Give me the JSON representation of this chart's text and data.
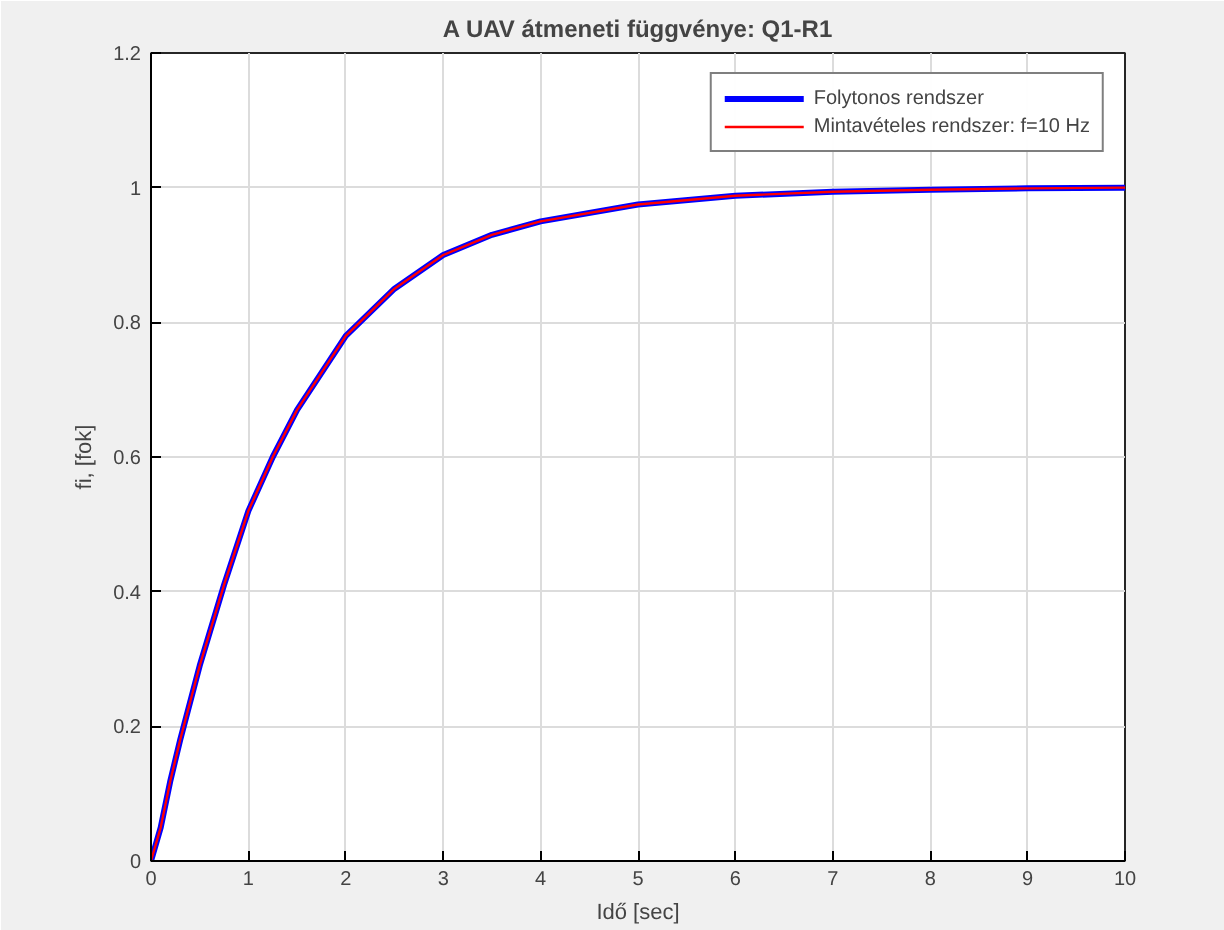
{
  "chart_data": {
    "type": "line",
    "title": "A UAV átmeneti függvénye: Q1-R1",
    "xlabel": "Idő [sec]",
    "ylabel": "fi, [fok]",
    "x": [
      0,
      0.1,
      0.2,
      0.3,
      0.5,
      0.75,
      1,
      1.25,
      1.5,
      2,
      2.5,
      3,
      3.5,
      4,
      5,
      6,
      7,
      8,
      9,
      10
    ],
    "series": [
      {
        "name": "Folytonos rendszer",
        "color": "#0000ff",
        "values": [
          0,
          0.05,
          0.12,
          0.18,
          0.29,
          0.41,
          0.52,
          0.6,
          0.67,
          0.78,
          0.85,
          0.9,
          0.93,
          0.95,
          0.975,
          0.988,
          0.994,
          0.997,
          0.999,
          1.0
        ]
      },
      {
        "name": "Mintavételes rendszer: f=10 Hz",
        "color": "#ff0000",
        "values": [
          0,
          0.05,
          0.12,
          0.18,
          0.29,
          0.41,
          0.52,
          0.6,
          0.67,
          0.78,
          0.85,
          0.9,
          0.93,
          0.95,
          0.975,
          0.988,
          0.994,
          0.997,
          0.999,
          1.0
        ]
      }
    ],
    "xlim": [
      0,
      10
    ],
    "ylim": [
      0,
      1.2
    ],
    "xticks": [
      0,
      1,
      2,
      3,
      4,
      5,
      6,
      7,
      8,
      9,
      10
    ],
    "yticks": [
      0,
      0.2,
      0.4,
      0.6,
      0.8,
      1,
      1.2
    ],
    "grid": true,
    "legend": "top right",
    "line_style": "solid",
    "marker": "none"
  }
}
